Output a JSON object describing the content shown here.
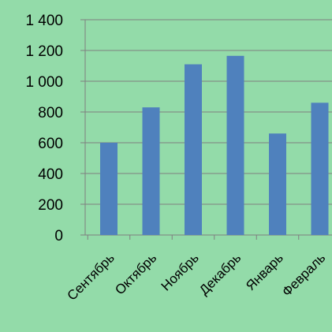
{
  "colors": {
    "background": "#93dba9",
    "bar": "#4f81bd",
    "gridline": "#7f7f7f",
    "axis": "#7f7f7f",
    "text": "#000000"
  },
  "chart_data": {
    "type": "bar",
    "title": "",
    "xlabel": "",
    "ylabel": "",
    "categories": [
      "Сентябрь",
      "Октябрь",
      "Ноябрь",
      "Декабрь",
      "Январь",
      "Февраль"
    ],
    "values": [
      600,
      830,
      1110,
      1165,
      660,
      860
    ],
    "ylim": [
      0,
      1400
    ],
    "yticks": [
      0,
      200,
      400,
      600,
      800,
      1000,
      1200,
      1400
    ],
    "ytick_labels": [
      "0",
      "200",
      "400",
      "600",
      "800",
      "1 000",
      "1 200",
      "1 400"
    ],
    "grid": true,
    "legend": "none"
  }
}
